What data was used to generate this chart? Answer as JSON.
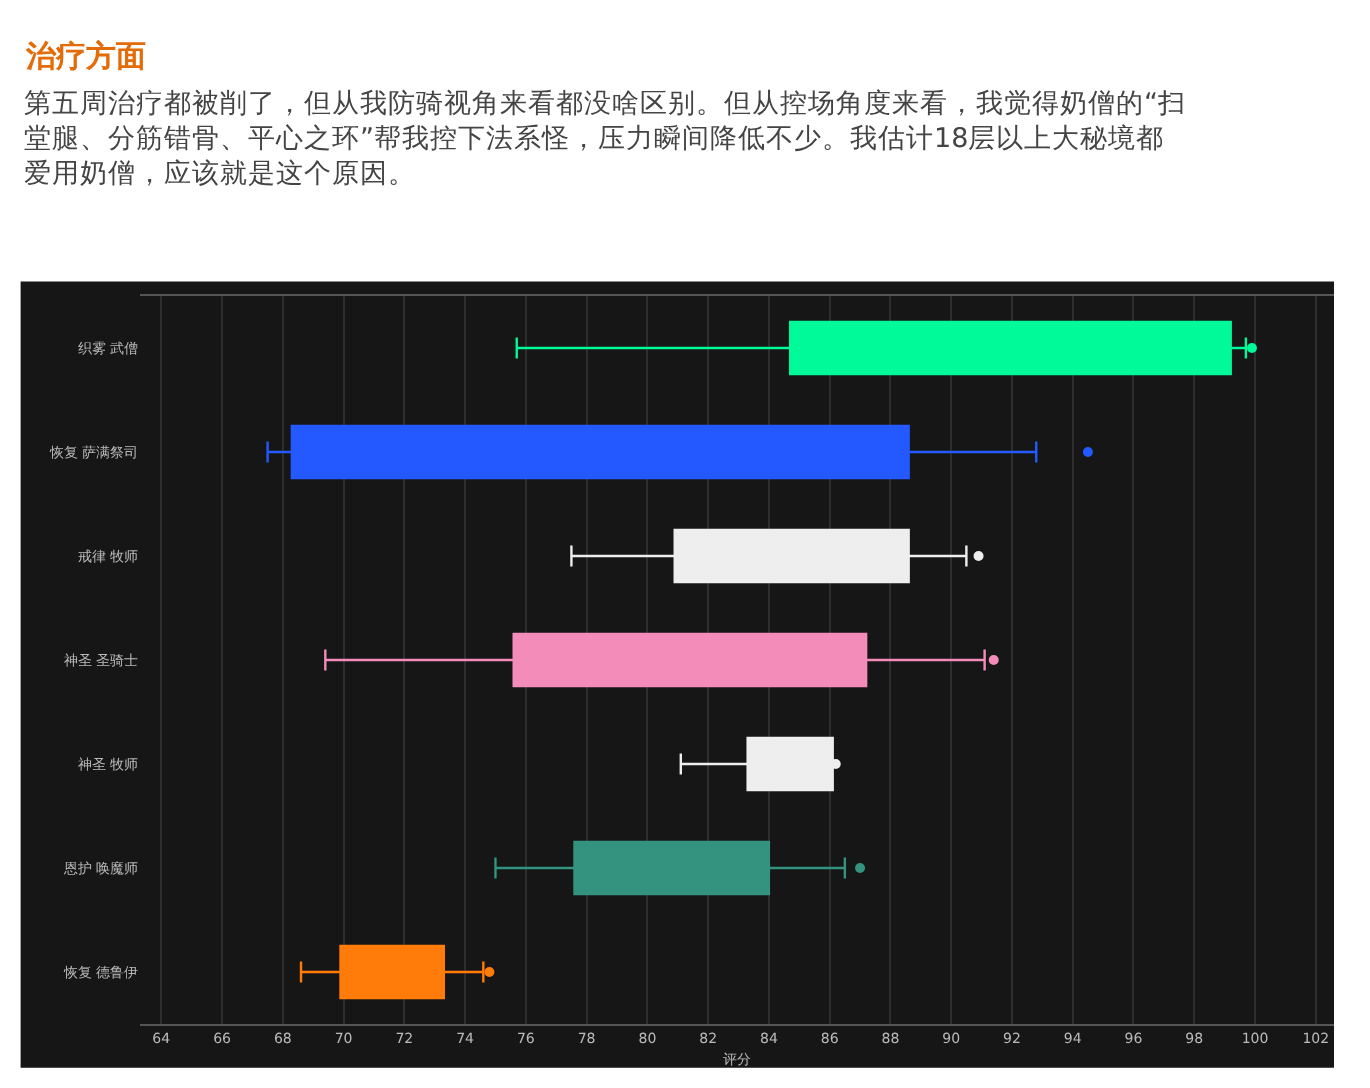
{
  "chart_data": {
    "type": "box",
    "title": "治疗方面",
    "subtitle": "第五周治疗都被削了，但从我防骑视角来看都没啥区别。但从控场角度来看，我觉得奶僧的“扫堂腿、分筋错骨、平心之环”帮我控下法系怪，压力瞬间降低不少。我估计18层以上大秘境都爱用奶僧，应该就是这个原因。",
    "orientation": "horizontal",
    "categories": [
      "织雾 武僧",
      "恢复 萨满祭司",
      "戒律 牧师",
      "神圣 圣骑士",
      "神圣 牧师",
      "恩护 唤魔师",
      "恢复 德鲁伊"
    ],
    "colors": [
      "#00fa9a",
      "#2459ff",
      "#eeeeee",
      "#f48cba",
      "#eeeeee",
      "#33937f",
      "#ff7c0a"
    ],
    "boxes": [
      {
        "low": 75.7,
        "q1": 84.7,
        "median": 92.9,
        "q3": 99.2,
        "high": 99.7,
        "outliers": [
          99.9
        ]
      },
      {
        "low": 67.5,
        "q1": 68.3,
        "median": 80.7,
        "q3": 88.6,
        "high": 92.8,
        "outliers": [
          94.5
        ]
      },
      {
        "low": 77.5,
        "q1": 80.9,
        "median": 88.4,
        "q3": 88.6,
        "high": 90.5,
        "outliers": [
          90.9
        ]
      },
      {
        "low": 69.4,
        "q1": 75.6,
        "median": 81.6,
        "q3": 87.2,
        "high": 91.1,
        "outliers": [
          91.4
        ]
      },
      {
        "low": 81.1,
        "q1": 83.3,
        "median": 86.0,
        "q3": 86.1,
        "high": 86.1,
        "outliers": [
          86.2
        ]
      },
      {
        "low": 75.0,
        "q1": 77.6,
        "median": 80.8,
        "q3": 84.0,
        "high": 86.5,
        "outliers": [
          87.0
        ]
      },
      {
        "low": 68.6,
        "q1": 69.9,
        "median": 71.6,
        "q3": 73.3,
        "high": 74.6,
        "outliers": [
          74.8
        ]
      }
    ],
    "xlabel": "评分",
    "xlim": [
      63.3,
      102.6
    ],
    "xticks": [
      64,
      66,
      68,
      70,
      72,
      74,
      76,
      78,
      80,
      82,
      84,
      86,
      88,
      90,
      92,
      94,
      96,
      98,
      100,
      102
    ],
    "grid": "x",
    "marker": "circle"
  }
}
